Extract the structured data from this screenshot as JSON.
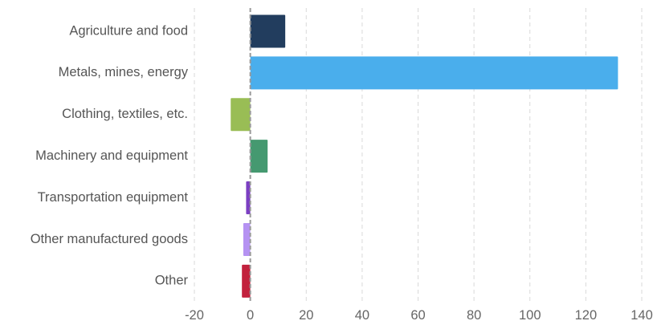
{
  "chart_data": {
    "type": "bar",
    "orientation": "horizontal",
    "title": "",
    "xlabel": "",
    "ylabel": "",
    "categories": [
      "Agriculture and food",
      "Metals, mines, energy",
      "Clothing, textiles, etc.",
      "Machinery and equipment",
      "Transportation equipment",
      "Other manufactured goods",
      "Other"
    ],
    "values": [
      12.5,
      131.5,
      -7,
      6.2,
      -1.5,
      -2.5,
      -3
    ],
    "bar_colors": [
      "#223d5e",
      "#4aaeec",
      "#99bd55",
      "#459970",
      "#7b3fc2",
      "#b592f2",
      "#c2213d"
    ],
    "xlim": [
      -20,
      140
    ],
    "x_ticks": [
      -20,
      0,
      20,
      40,
      60,
      80,
      100,
      120,
      140
    ],
    "grid": "vertical dashed",
    "legend": "none"
  }
}
